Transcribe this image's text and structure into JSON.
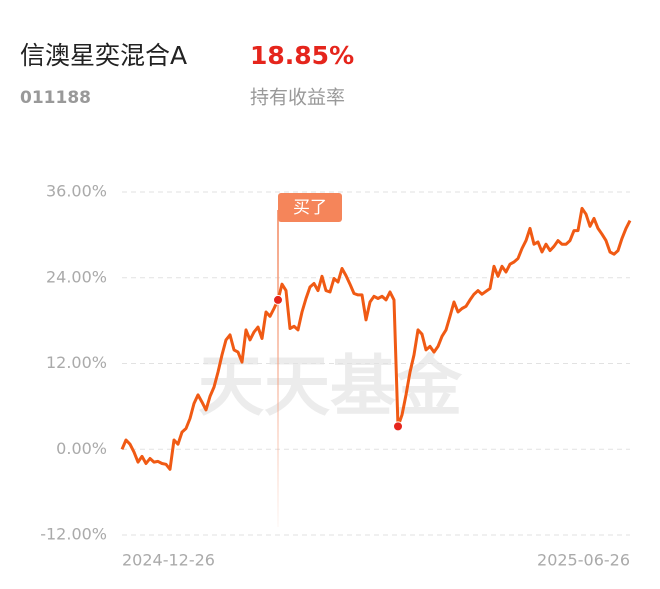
{
  "fund": {
    "name": "信澳星奕混合A",
    "code": "011188",
    "return": "18.85%",
    "return_label": "持有收益率"
  },
  "chart_data": {
    "type": "line",
    "watermark": "天天基金",
    "color": "#f05a14",
    "grid": true,
    "ylim": [
      -12,
      36
    ],
    "yticks": [
      {
        "value": -12,
        "label": "-12.00%"
      },
      {
        "value": 0,
        "label": "0.00%"
      },
      {
        "value": 12,
        "label": "12.00%"
      },
      {
        "value": 24,
        "label": "24.00%"
      },
      {
        "value": 36,
        "label": "36.00%"
      }
    ],
    "categories": [
      "2024-12-26",
      null,
      null,
      null,
      null,
      null,
      null,
      null,
      null,
      null,
      null,
      null,
      null,
      null,
      null,
      null,
      null,
      null,
      null,
      null,
      null,
      null,
      null,
      null,
      null,
      null,
      null,
      null,
      null,
      null,
      null,
      null,
      null,
      null,
      null,
      null,
      null,
      null,
      null,
      null,
      null,
      null,
      null,
      null,
      null,
      null,
      null,
      null,
      null,
      null,
      null,
      null,
      null,
      null,
      null,
      null,
      null,
      null,
      null,
      null,
      null,
      null,
      null,
      null,
      null,
      null,
      null,
      null,
      null,
      null,
      null,
      null,
      null,
      null,
      null,
      null,
      null,
      null,
      null,
      null,
      null,
      null,
      null,
      null,
      null,
      null,
      null,
      null,
      null,
      null,
      null,
      null,
      null,
      null,
      null,
      null,
      null,
      null,
      null,
      null,
      null,
      null,
      null,
      null,
      null,
      null,
      null,
      null,
      null,
      null,
      null,
      null,
      null,
      null,
      null,
      null,
      null,
      null,
      null,
      null,
      null,
      null,
      null,
      null,
      null,
      null,
      null,
      "2025-06-26"
    ],
    "values": [
      0,
      1.3,
      0.7,
      -0.4,
      -1.8,
      -1,
      -2,
      -1.3,
      -1.8,
      -1.7,
      -2,
      -2.1,
      -2.8,
      1.3,
      0.7,
      2.4,
      2.9,
      4.3,
      6.4,
      7.6,
      6.6,
      5.5,
      7.4,
      8.7,
      10.8,
      13.2,
      15.3,
      16,
      13.9,
      13.6,
      12.2,
      16.7,
      15.3,
      16.4,
      17.1,
      15.5,
      19.2,
      18.6,
      19.7,
      20.9,
      23.1,
      22.2,
      16.9,
      17.2,
      16.7,
      19.2,
      21.1,
      22.7,
      23.2,
      22.2,
      24.2,
      22.2,
      22,
      23.9,
      23.4,
      25.3,
      24.3,
      23.1,
      21.8,
      21.6,
      21.6,
      18.1,
      20.6,
      21.4,
      21.1,
      21.4,
      20.9,
      22,
      20.9,
      3.2,
      4.8,
      7.6,
      10.8,
      13.2,
      16.7,
      16.1,
      13.9,
      14.4,
      13.6,
      14.4,
      15.8,
      16.7,
      18.6,
      20.6,
      19.2,
      19.7,
      20,
      20.9,
      21.7,
      22.2,
      21.7,
      22.1,
      22.5,
      25.6,
      24.2,
      25.6,
      24.8,
      25.9,
      26.2,
      26.7,
      28.1,
      29.2,
      30.9,
      28.7,
      29,
      27.6,
      28.7,
      27.8,
      28.4,
      29.2,
      28.7,
      28.7,
      29.2,
      30.6,
      30.6,
      33.7,
      32.9,
      31.2,
      32.3,
      30.9,
      30.1,
      29.2,
      27.6,
      27.3,
      27.8,
      29.5,
      30.9,
      32
    ],
    "buy_annotation": {
      "text": "买了",
      "index": 39
    },
    "marked_points": [
      39,
      69
    ]
  }
}
